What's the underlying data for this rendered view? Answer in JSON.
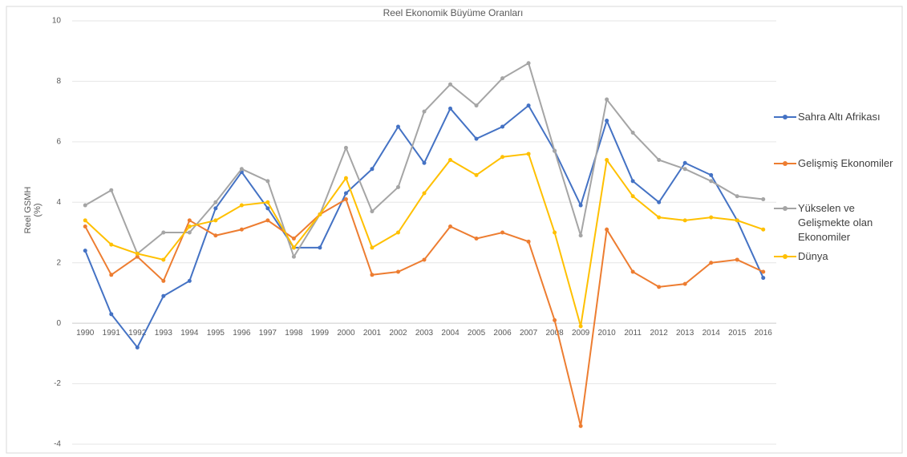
{
  "chart_data": {
    "type": "line",
    "title": "Reel Ekonomik Büyüme Oranları",
    "y_label": "Reel GSMH (%)",
    "categories": [
      "1990",
      "1991",
      "1992",
      "1993",
      "1994",
      "1995",
      "1996",
      "1997",
      "1998",
      "1999",
      "2000",
      "2001",
      "2002",
      "2003",
      "2004",
      "2005",
      "2006",
      "2007",
      "2008",
      "2009",
      "2010",
      "2011",
      "2012",
      "2013",
      "2014",
      "2015",
      "2016"
    ],
    "series": [
      {
        "name": "Sahra Altı Afrikası",
        "color": "#4472c4",
        "values": [
          2.4,
          0.3,
          -0.8,
          0.9,
          1.4,
          3.8,
          5.0,
          3.8,
          2.5,
          2.5,
          4.3,
          5.1,
          6.5,
          5.3,
          7.1,
          6.1,
          6.5,
          7.2,
          5.7,
          3.9,
          6.7,
          4.7,
          4.0,
          5.3,
          4.9,
          3.4,
          1.5
        ]
      },
      {
        "name": "Gelişmiş Ekonomiler",
        "color": "#ed7d31",
        "values": [
          3.2,
          1.6,
          2.2,
          1.4,
          3.4,
          2.9,
          3.1,
          3.4,
          2.8,
          3.6,
          4.1,
          1.6,
          1.7,
          2.1,
          3.2,
          2.8,
          3.0,
          2.7,
          0.1,
          -3.4,
          3.1,
          1.7,
          1.2,
          1.3,
          2.0,
          2.1,
          1.7
        ]
      },
      {
        "name": "Yükselen ve Gelişmekte olan Ekonomiler",
        "color": "#a5a5a5",
        "values": [
          3.9,
          4.4,
          2.3,
          3.0,
          3.0,
          4.0,
          5.1,
          4.7,
          2.2,
          3.6,
          5.8,
          3.7,
          4.5,
          7.0,
          7.9,
          7.2,
          8.1,
          8.6,
          5.7,
          2.9,
          7.4,
          6.3,
          5.4,
          5.1,
          4.7,
          4.2,
          4.1
        ]
      },
      {
        "name": "Dünya",
        "color": "#ffc000",
        "values": [
          3.4,
          2.6,
          2.3,
          2.1,
          3.2,
          3.4,
          3.9,
          4.0,
          2.5,
          3.6,
          4.8,
          2.5,
          3.0,
          4.3,
          5.4,
          4.9,
          5.5,
          5.6,
          3.0,
          -0.1,
          5.4,
          4.2,
          3.5,
          3.4,
          3.5,
          3.4,
          3.1
        ]
      }
    ],
    "ylim": [
      -4,
      10
    ],
    "yticks": [
      -4,
      -2,
      0,
      2,
      4,
      6,
      8,
      10
    ],
    "grid": true,
    "legend": "right"
  }
}
